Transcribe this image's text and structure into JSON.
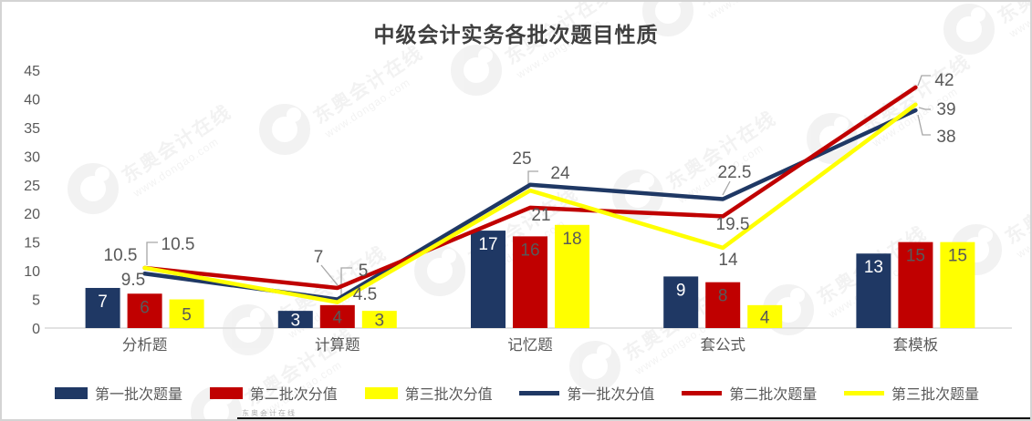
{
  "title": "中级会计实务各批次题目性质",
  "watermark": {
    "brand": "东奥会计在线",
    "url": "www.dongao.com"
  },
  "chart_data": {
    "type": "combo-bar-line",
    "title": "中级会计实务各批次题目性质",
    "categories": [
      "分析题",
      "计算题",
      "记忆题",
      "套公式",
      "套模板"
    ],
    "y_axis": {
      "min": 0,
      "max": 45,
      "step": 5,
      "ticks": [
        0,
        5,
        10,
        15,
        20,
        25,
        30,
        35,
        40,
        45
      ]
    },
    "grid": false,
    "legend_position": "bottom",
    "bar_series": [
      {
        "name": "第一批次题量",
        "color": "#1f3864",
        "label_color": "#ffffff",
        "values": [
          7,
          3,
          17,
          9,
          13
        ]
      },
      {
        "name": "第二批次分值",
        "color": "#c00000",
        "label_color": "#595959",
        "values": [
          6,
          4,
          16,
          8,
          15
        ]
      },
      {
        "name": "第三批次分值",
        "color": "#ffff00",
        "label_color": "#595959",
        "values": [
          5,
          3,
          18,
          4,
          15
        ]
      }
    ],
    "line_series": [
      {
        "name": "第一批次分值",
        "color": "#1f3864",
        "values": [
          9.5,
          5,
          25,
          22.5,
          38
        ]
      },
      {
        "name": "第二批次题量",
        "color": "#c00000",
        "values": [
          10.5,
          7,
          21,
          19.5,
          42
        ]
      },
      {
        "name": "第三批次题量",
        "color": "#ffff00",
        "values": [
          10.5,
          4.5,
          24,
          14,
          39
        ]
      }
    ],
    "colors": {
      "axis_text": "#595959",
      "data_label_text": "#595959",
      "title_text": "#3f3f3f",
      "baseline": "#d9d9d9",
      "leader_line": "#a6a6a6"
    }
  }
}
